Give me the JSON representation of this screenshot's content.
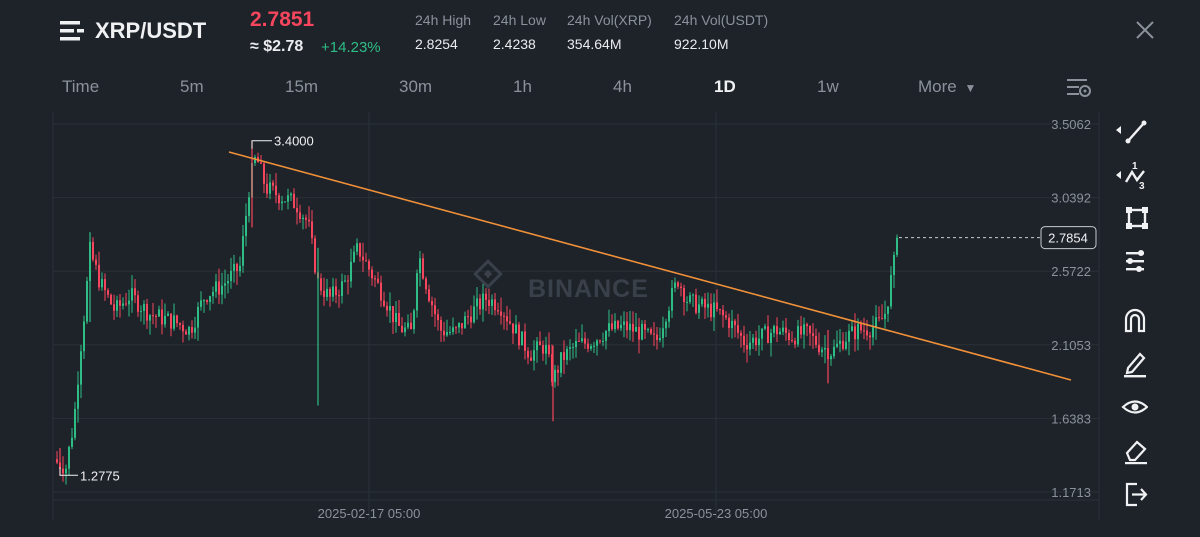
{
  "header": {
    "pair": "XRP/USDT",
    "price": "2.7851",
    "approx_price": "≈ $2.78",
    "change_pct": "+14.23%",
    "stats": [
      {
        "label": "24h High",
        "value": "2.8254"
      },
      {
        "label": "24h Low",
        "value": "2.4238"
      },
      {
        "label": "24h Vol(XRP)",
        "value": "354.64M"
      },
      {
        "label": "24h Vol(USDT)",
        "value": "922.10M"
      }
    ]
  },
  "tabs": [
    "Time",
    "5m",
    "15m",
    "30m",
    "1h",
    "4h",
    "1D",
    "1w",
    "More"
  ],
  "active_tab": "1D",
  "chart": {
    "watermark": "BINANCE",
    "y_ticks": [
      "3.5062",
      "3.0392",
      "2.5722",
      "2.1053",
      "1.6383",
      "1.1713"
    ],
    "x_ticks": [
      "2025-02-17 05:00",
      "2025-05-23 05:00"
    ],
    "current_price_label": "2.7854",
    "high_label": "3.4000",
    "low_label": "1.2775"
  },
  "colors": {
    "up": "#2ebd85",
    "down": "#f6465d",
    "trendline": "#f0913a",
    "background": "#1e2229",
    "grid": "#2b3139"
  },
  "toolbar_icons": [
    "line-tool-icon",
    "fib-tool-icon",
    "shape-tool-icon",
    "indicator-tool-icon",
    "magnet-icon",
    "pencil-icon",
    "eye-icon",
    "eraser-icon",
    "exit-icon"
  ]
}
